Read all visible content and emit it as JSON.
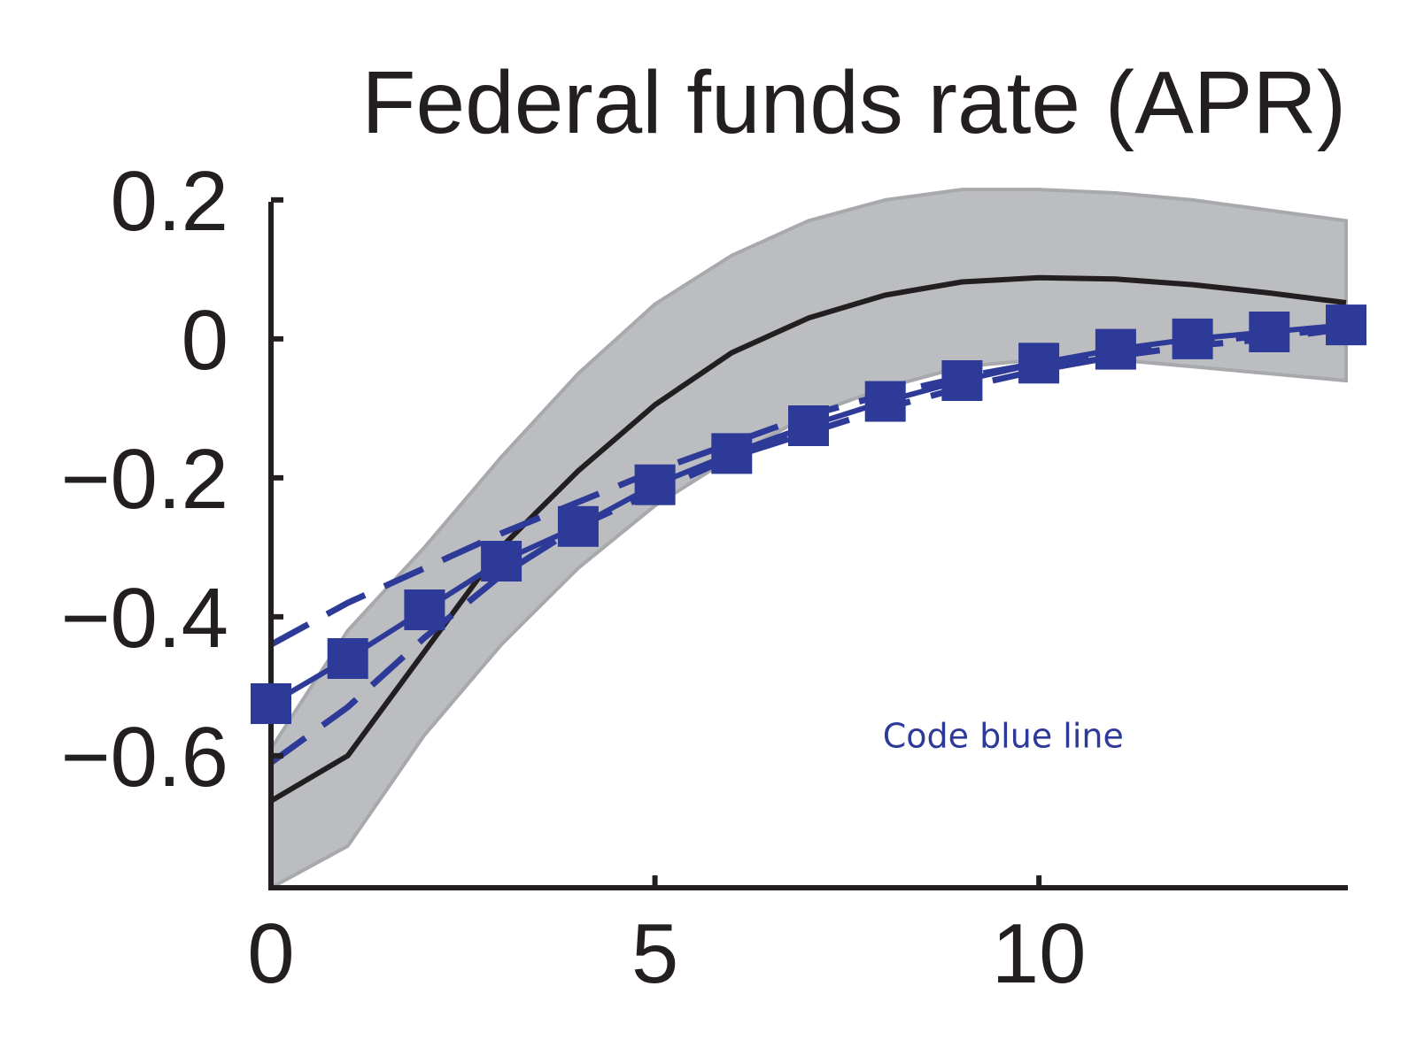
{
  "chart_data": {
    "type": "line",
    "title": "Federal funds rate (APR)",
    "xlabel": "",
    "ylabel": "",
    "xlim": [
      0,
      14
    ],
    "ylim": [
      -0.79,
      0.21
    ],
    "grid": false,
    "x_ticks": [
      {
        "value": 0,
        "label": "0"
      },
      {
        "value": 5,
        "label": "5"
      },
      {
        "value": 10,
        "label": "10"
      }
    ],
    "y_ticks": [
      {
        "value": 0.2,
        "label": "0.2"
      },
      {
        "value": 0,
        "label": "0"
      },
      {
        "value": -0.2,
        "label": "−0.2"
      },
      {
        "value": -0.4,
        "label": "−0.4"
      },
      {
        "value": -0.6,
        "label": "−0.6"
      }
    ],
    "x": [
      0,
      1,
      2,
      3,
      4,
      5,
      6,
      7,
      8,
      9,
      10,
      11,
      12,
      13,
      14
    ],
    "band": {
      "color": "#bcbdc0",
      "edge_color": "#a7a9ac",
      "lower": [
        -0.79,
        -0.73,
        -0.57,
        -0.44,
        -0.33,
        -0.24,
        -0.17,
        -0.11,
        -0.07,
        -0.04,
        -0.03,
        -0.03,
        -0.04,
        -0.05,
        -0.06
      ],
      "upper": [
        -0.59,
        -0.42,
        -0.3,
        -0.17,
        -0.05,
        0.05,
        0.12,
        0.17,
        0.2,
        0.215,
        0.215,
        0.21,
        0.2,
        0.185,
        0.17
      ]
    },
    "series": [
      {
        "style": "solid",
        "color": "#231f20",
        "values": [
          -0.665,
          -0.6,
          -0.45,
          -0.3,
          -0.19,
          -0.095,
          -0.02,
          0.03,
          0.063,
          0.082,
          0.088,
          0.086,
          0.078,
          0.066,
          0.052
        ]
      },
      {
        "style": "dashed",
        "color": "#2e3a97",
        "values": [
          -0.44,
          -0.38,
          -0.33,
          -0.28,
          -0.235,
          -0.19,
          -0.15,
          -0.11,
          -0.08,
          -0.055,
          -0.035,
          -0.02,
          -0.005,
          0.005,
          0.015
        ]
      },
      {
        "style": "dashed",
        "color": "#2e3a97",
        "values": [
          -0.61,
          -0.53,
          -0.43,
          -0.34,
          -0.27,
          -0.22,
          -0.17,
          -0.135,
          -0.1,
          -0.07,
          -0.045,
          -0.025,
          -0.01,
          0.0,
          0.015
        ]
      },
      {
        "style": "solid-square-markers",
        "color": "#2e3a97",
        "values": [
          -0.525,
          -0.46,
          -0.39,
          -0.32,
          -0.27,
          -0.21,
          -0.165,
          -0.125,
          -0.09,
          -0.06,
          -0.035,
          -0.015,
          0.0,
          0.01,
          0.02
        ]
      }
    ],
    "annotations": [
      {
        "text": "Code blue line",
        "x": 8.0,
        "y": -0.57,
        "color": "#2e3a97"
      }
    ]
  }
}
